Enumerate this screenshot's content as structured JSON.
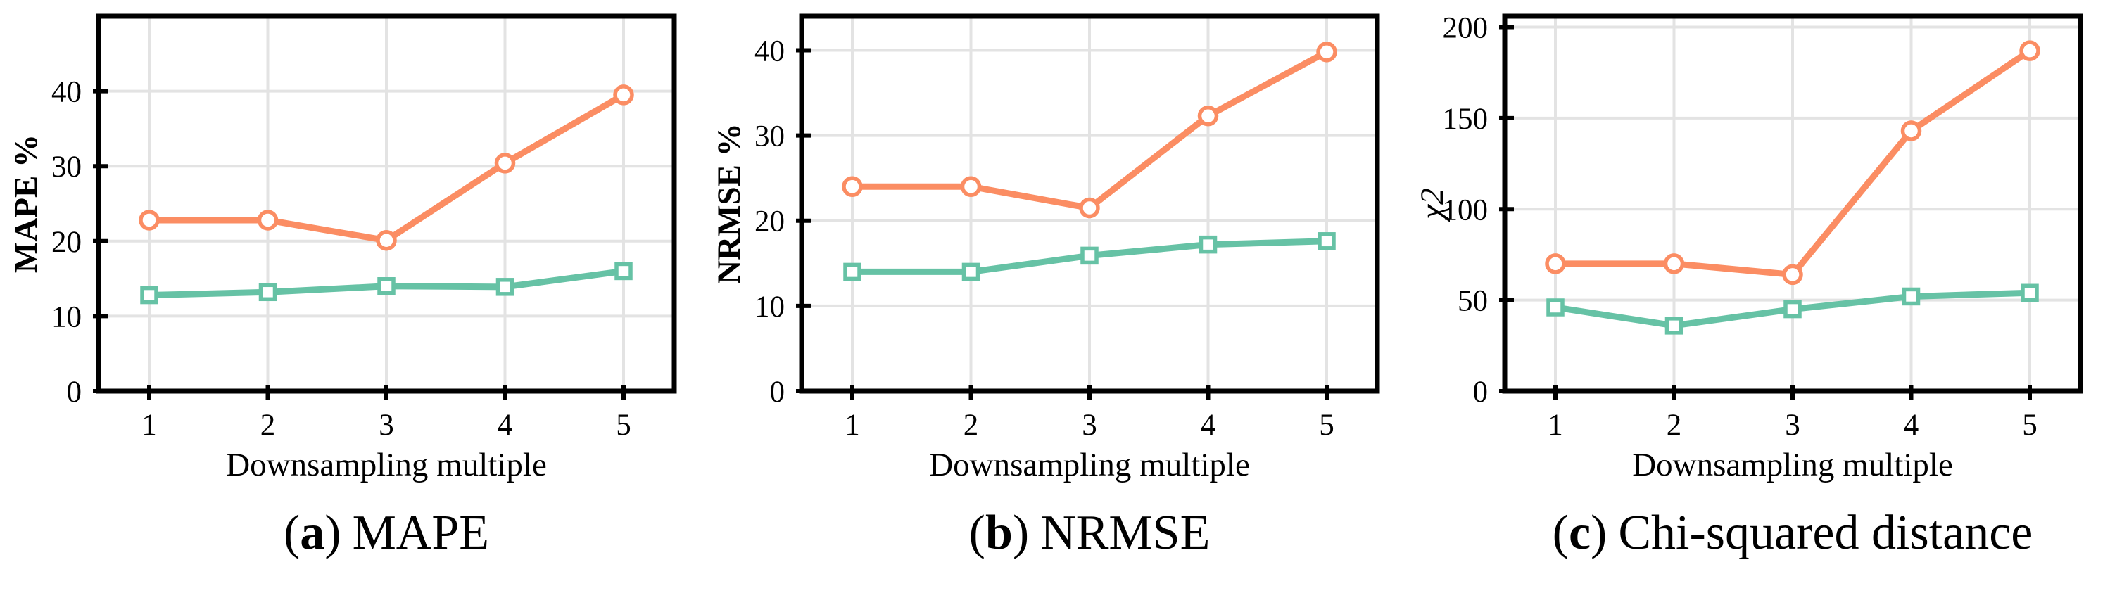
{
  "figure": {
    "background": "#ffffff",
    "axis_color": "#000000",
    "grid_color": "#e3e3e3"
  },
  "chart_data": [
    {
      "type": "line",
      "caption": {
        "open": "(",
        "letter": "a",
        "close": ")",
        "label": "MAPE"
      },
      "xlabel": "Downsampling multiple",
      "ylabel": "MAPE %",
      "ylabel_style": "bold",
      "x": [
        1,
        2,
        3,
        4,
        5
      ],
      "xticklabels": [
        "1",
        "2",
        "3",
        "4",
        "5"
      ],
      "ylim": [
        0,
        50
      ],
      "yticks": [
        0,
        10,
        20,
        30,
        40
      ],
      "grid": true,
      "legend": "none",
      "series": [
        {
          "marker": "circle",
          "color": "#FB8D63",
          "values": [
            22.8,
            22.8,
            20.1,
            30.4,
            39.5
          ]
        },
        {
          "marker": "square",
          "color": "#66C2A5",
          "values": [
            12.8,
            13.2,
            14.0,
            13.9,
            16.0
          ]
        }
      ]
    },
    {
      "type": "line",
      "caption": {
        "open": "(",
        "letter": "b",
        "close": ")",
        "label": "NRMSE"
      },
      "xlabel": "Downsampling multiple",
      "ylabel": "NRMSE %",
      "ylabel_style": "bold",
      "x": [
        1,
        2,
        3,
        4,
        5
      ],
      "xticklabels": [
        "1",
        "2",
        "3",
        "4",
        "5"
      ],
      "ylim": [
        0,
        44
      ],
      "yticks": [
        0,
        10,
        20,
        30,
        40
      ],
      "grid": true,
      "legend": "none",
      "series": [
        {
          "marker": "circle",
          "color": "#FB8D63",
          "values": [
            24.0,
            24.0,
            21.5,
            32.3,
            39.8
          ]
        },
        {
          "marker": "square",
          "color": "#66C2A5",
          "values": [
            14.0,
            14.0,
            15.9,
            17.2,
            17.6
          ]
        }
      ]
    },
    {
      "type": "line",
      "caption": {
        "open": "(",
        "letter": "c",
        "close": ")",
        "label": "Chi-squared distance"
      },
      "xlabel": "Downsampling multiple",
      "ylabel": "χ2",
      "ylabel_style": "italic",
      "x": [
        1,
        2,
        3,
        4,
        5
      ],
      "xticklabels": [
        "1",
        "2",
        "3",
        "4",
        "5"
      ],
      "ylim": [
        0,
        206
      ],
      "yticks": [
        0,
        50,
        100,
        150,
        200
      ],
      "grid": true,
      "legend": "none",
      "series": [
        {
          "marker": "circle",
          "color": "#FB8D63",
          "values": [
            70,
            70,
            64,
            143,
            187
          ]
        },
        {
          "marker": "square",
          "color": "#66C2A5",
          "values": [
            46,
            36,
            45,
            52,
            54
          ]
        }
      ]
    }
  ]
}
